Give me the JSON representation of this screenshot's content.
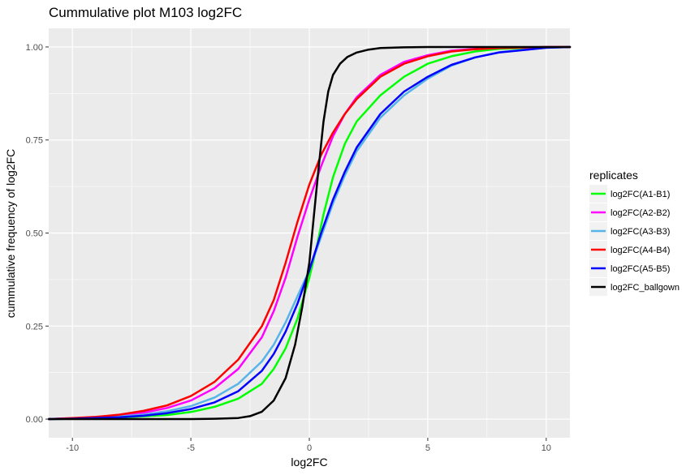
{
  "chart_data": {
    "type": "line",
    "title": "Cummulative plot M103 log2FC",
    "xlabel": "log2FC",
    "ylabel": "cummulative frequency of log2FC",
    "xlim": [
      -11,
      11
    ],
    "ylim": [
      -0.05,
      1.05
    ],
    "x_ticks": [
      -10,
      -5,
      0,
      5,
      10
    ],
    "x_tick_labels": [
      "-10",
      "-5",
      "0",
      "5",
      "10"
    ],
    "y_ticks": [
      0,
      0.25,
      0.5,
      0.75,
      1
    ],
    "y_tick_labels": [
      "0.00",
      "0.25",
      "0.50",
      "0.75",
      "1.00"
    ],
    "grid": true,
    "legend": {
      "title": "replicates",
      "position": "right"
    },
    "series": [
      {
        "name": "log2FC(A1-B1)",
        "color": "#00ff00",
        "points": [
          [
            -11,
            0
          ],
          [
            -10,
            0.001
          ],
          [
            -8,
            0.004
          ],
          [
            -6,
            0.011
          ],
          [
            -5,
            0.019
          ],
          [
            -4,
            0.033
          ],
          [
            -3,
            0.055
          ],
          [
            -2,
            0.095
          ],
          [
            -1.5,
            0.135
          ],
          [
            -1,
            0.19
          ],
          [
            -0.5,
            0.27
          ],
          [
            0,
            0.38
          ],
          [
            0.3,
            0.46
          ],
          [
            0.6,
            0.55
          ],
          [
            1,
            0.65
          ],
          [
            1.5,
            0.74
          ],
          [
            2,
            0.8
          ],
          [
            3,
            0.87
          ],
          [
            4,
            0.92
          ],
          [
            5,
            0.955
          ],
          [
            6,
            0.975
          ],
          [
            7,
            0.988
          ],
          [
            8,
            0.995
          ],
          [
            10,
            0.999
          ],
          [
            11,
            1
          ]
        ]
      },
      {
        "name": "log2FC(A2-B2)",
        "color": "#ff00ff",
        "points": [
          [
            -11,
            0
          ],
          [
            -10,
            0.002
          ],
          [
            -8,
            0.009
          ],
          [
            -7,
            0.017
          ],
          [
            -6,
            0.03
          ],
          [
            -5,
            0.05
          ],
          [
            -4,
            0.083
          ],
          [
            -3,
            0.135
          ],
          [
            -2,
            0.22
          ],
          [
            -1.5,
            0.29
          ],
          [
            -1,
            0.38
          ],
          [
            -0.5,
            0.49
          ],
          [
            0,
            0.59
          ],
          [
            0.5,
            0.68
          ],
          [
            1,
            0.76
          ],
          [
            1.5,
            0.82
          ],
          [
            2,
            0.865
          ],
          [
            3,
            0.925
          ],
          [
            4,
            0.96
          ],
          [
            5,
            0.978
          ],
          [
            6,
            0.99
          ],
          [
            7,
            0.995
          ],
          [
            8,
            0.998
          ],
          [
            10,
            1
          ],
          [
            11,
            1
          ]
        ]
      },
      {
        "name": "log2FC(A3-B3)",
        "color": "#56b4e9",
        "points": [
          [
            -11,
            0
          ],
          [
            -10,
            0.002
          ],
          [
            -8,
            0.007
          ],
          [
            -7,
            0.012
          ],
          [
            -6,
            0.021
          ],
          [
            -5,
            0.035
          ],
          [
            -4,
            0.058
          ],
          [
            -3,
            0.095
          ],
          [
            -2,
            0.155
          ],
          [
            -1.5,
            0.2
          ],
          [
            -1,
            0.26
          ],
          [
            -0.5,
            0.33
          ],
          [
            0,
            0.4
          ],
          [
            0.5,
            0.49
          ],
          [
            1,
            0.58
          ],
          [
            1.5,
            0.655
          ],
          [
            2,
            0.72
          ],
          [
            3,
            0.81
          ],
          [
            4,
            0.87
          ],
          [
            5,
            0.915
          ],
          [
            6,
            0.95
          ],
          [
            7,
            0.972
          ],
          [
            8,
            0.986
          ],
          [
            10,
            0.998
          ],
          [
            11,
            1
          ]
        ]
      },
      {
        "name": "log2FC(A4-B4)",
        "color": "#ff0000",
        "points": [
          [
            -11,
            0
          ],
          [
            -10,
            0.003
          ],
          [
            -9,
            0.006
          ],
          [
            -8,
            0.012
          ],
          [
            -7,
            0.022
          ],
          [
            -6,
            0.037
          ],
          [
            -5,
            0.062
          ],
          [
            -4,
            0.1
          ],
          [
            -3,
            0.16
          ],
          [
            -2,
            0.25
          ],
          [
            -1.5,
            0.32
          ],
          [
            -1,
            0.42
          ],
          [
            -0.5,
            0.53
          ],
          [
            0,
            0.63
          ],
          [
            0.5,
            0.71
          ],
          [
            1,
            0.77
          ],
          [
            1.5,
            0.82
          ],
          [
            2,
            0.86
          ],
          [
            3,
            0.92
          ],
          [
            4,
            0.955
          ],
          [
            5,
            0.975
          ],
          [
            6,
            0.988
          ],
          [
            7,
            0.994
          ],
          [
            8,
            0.997
          ],
          [
            10,
            1
          ],
          [
            11,
            1
          ]
        ]
      },
      {
        "name": "log2FC(A5-B5)",
        "color": "#0000ff",
        "points": [
          [
            -11,
            0
          ],
          [
            -10,
            0.001
          ],
          [
            -8,
            0.005
          ],
          [
            -7,
            0.009
          ],
          [
            -6,
            0.016
          ],
          [
            -5,
            0.027
          ],
          [
            -4,
            0.045
          ],
          [
            -3,
            0.075
          ],
          [
            -2,
            0.13
          ],
          [
            -1.5,
            0.175
          ],
          [
            -1,
            0.235
          ],
          [
            -0.5,
            0.31
          ],
          [
            0,
            0.4
          ],
          [
            0.5,
            0.5
          ],
          [
            1,
            0.59
          ],
          [
            1.5,
            0.665
          ],
          [
            2,
            0.73
          ],
          [
            3,
            0.82
          ],
          [
            4,
            0.88
          ],
          [
            5,
            0.92
          ],
          [
            6,
            0.952
          ],
          [
            7,
            0.972
          ],
          [
            8,
            0.985
          ],
          [
            10,
            0.998
          ],
          [
            11,
            1
          ]
        ]
      },
      {
        "name": "log2FC_ballgown",
        "color": "#000000",
        "points": [
          [
            -11,
            0
          ],
          [
            -5,
            0
          ],
          [
            -4,
            0.001
          ],
          [
            -3,
            0.003
          ],
          [
            -2.5,
            0.008
          ],
          [
            -2,
            0.02
          ],
          [
            -1.5,
            0.05
          ],
          [
            -1,
            0.11
          ],
          [
            -0.6,
            0.2
          ],
          [
            -0.3,
            0.3
          ],
          [
            0,
            0.42
          ],
          [
            0.2,
            0.55
          ],
          [
            0.4,
            0.68
          ],
          [
            0.6,
            0.8
          ],
          [
            0.8,
            0.88
          ],
          [
            1,
            0.925
          ],
          [
            1.3,
            0.955
          ],
          [
            1.6,
            0.973
          ],
          [
            2,
            0.985
          ],
          [
            2.5,
            0.993
          ],
          [
            3,
            0.997
          ],
          [
            4,
            0.999
          ],
          [
            5,
            1
          ],
          [
            11,
            1
          ]
        ]
      }
    ]
  }
}
